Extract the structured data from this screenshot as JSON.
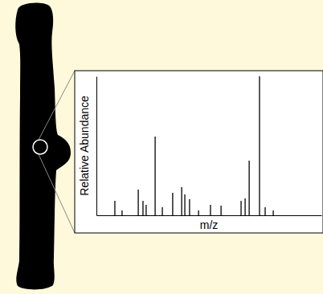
{
  "chart_data": {
    "type": "bar",
    "x_label": "m/z",
    "y_label": "Relative Abundance",
    "x": [
      8.2,
      11.4,
      18.6,
      20.7,
      22.1,
      26.1,
      29.3,
      33.9,
      37.9,
      39.3,
      41.4,
      45.4,
      50.7,
      55.4,
      64.3,
      66.1,
      67.9,
      72.5,
      75.0,
      78.6
    ],
    "values": [
      10.4,
      3.5,
      18.5,
      10.4,
      7.5,
      56.6,
      5.8,
      16.2,
      20.2,
      15.0,
      11.6,
      3.5,
      7.5,
      6.9,
      10.4,
      12.1,
      39.3,
      100,
      5.8,
      3.5
    ],
    "color": "#000000",
    "xlim": [
      0,
      100
    ],
    "ylim": [
      0,
      100
    ],
    "tick_labels": false
  }
}
